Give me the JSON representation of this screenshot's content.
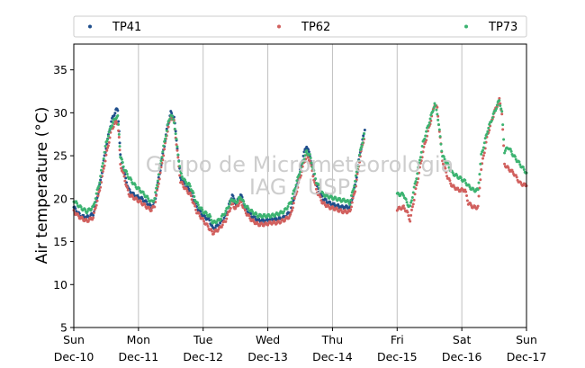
{
  "chart_data": {
    "type": "scatter",
    "ylabel": "Air temperature (°C)",
    "xlabel": "",
    "ylim": [
      5,
      38
    ],
    "xlim": [
      0,
      7
    ],
    "y_ticks": [
      5,
      10,
      15,
      20,
      25,
      30,
      35
    ],
    "x_ticks": [
      {
        "x": 0,
        "day": "Sun",
        "date": "Dec-10"
      },
      {
        "x": 1,
        "day": "Mon",
        "date": "Dec-11"
      },
      {
        "x": 2,
        "day": "Tue",
        "date": "Dec-12"
      },
      {
        "x": 3,
        "day": "Wed",
        "date": "Dec-13"
      },
      {
        "x": 4,
        "day": "Thu",
        "date": "Dec-14"
      },
      {
        "x": 5,
        "day": "Fri",
        "date": "Dec-15"
      },
      {
        "x": 6,
        "day": "Sat",
        "date": "Dec-16"
      },
      {
        "x": 7,
        "day": "Sun",
        "date": "Dec-17"
      }
    ],
    "grid": "vertical",
    "legend_position": "top",
    "watermark": [
      "Grupo de Micrometeorologia",
      "IAG / USP"
    ],
    "series": [
      {
        "name": "TP41",
        "color": "#1f4e8c",
        "points": [
          [
            0,
            19.0
          ],
          [
            0.1,
            18.0
          ],
          [
            0.2,
            17.8
          ],
          [
            0.3,
            18.2
          ],
          [
            0.4,
            21.5
          ],
          [
            0.5,
            26.0
          ],
          [
            0.58,
            29.0
          ],
          [
            0.65,
            30.3
          ],
          [
            0.68,
            30.3
          ],
          [
            0.7,
            28.0
          ],
          [
            0.72,
            25.0
          ],
          [
            0.78,
            23.0
          ],
          [
            0.85,
            21.0
          ],
          [
            0.95,
            20.3
          ],
          [
            1.05,
            20.0
          ],
          [
            1.15,
            19.4
          ],
          [
            1.2,
            19.0
          ],
          [
            1.25,
            19.5
          ],
          [
            1.35,
            24.0
          ],
          [
            1.45,
            28.5
          ],
          [
            1.5,
            30.0
          ],
          [
            1.55,
            29.5
          ],
          [
            1.6,
            26.0
          ],
          [
            1.65,
            22.5
          ],
          [
            1.72,
            21.5
          ],
          [
            1.8,
            21.0
          ],
          [
            1.9,
            19.0
          ],
          [
            2.0,
            18.0
          ],
          [
            2.1,
            17.5
          ],
          [
            2.15,
            16.5
          ],
          [
            2.25,
            17.0
          ],
          [
            2.35,
            18.0
          ],
          [
            2.45,
            20.5
          ],
          [
            2.5,
            19.2
          ],
          [
            2.58,
            20.5
          ],
          [
            2.65,
            19.0
          ],
          [
            2.75,
            18.0
          ],
          [
            2.85,
            17.5
          ],
          [
            2.95,
            17.4
          ],
          [
            3.05,
            17.6
          ],
          [
            3.15,
            17.6
          ],
          [
            3.25,
            17.8
          ],
          [
            3.35,
            18.5
          ],
          [
            3.45,
            21.5
          ],
          [
            3.55,
            25.0
          ],
          [
            3.6,
            26.2
          ],
          [
            3.65,
            25.0
          ],
          [
            3.75,
            21.5
          ],
          [
            3.85,
            20.0
          ],
          [
            3.95,
            19.5
          ],
          [
            4.05,
            19.2
          ],
          [
            4.15,
            19.0
          ],
          [
            4.2,
            19.0
          ],
          [
            4.27,
            19.0
          ],
          [
            4.35,
            21.5
          ],
          [
            4.43,
            25.5
          ],
          [
            4.5,
            28.0
          ]
        ]
      },
      {
        "name": "TP62",
        "color": "#d1605e",
        "points": [
          [
            0,
            18.5
          ],
          [
            0.1,
            17.8
          ],
          [
            0.2,
            17.4
          ],
          [
            0.3,
            17.8
          ],
          [
            0.4,
            21.0
          ],
          [
            0.5,
            25.0
          ],
          [
            0.58,
            28.0
          ],
          [
            0.65,
            29.0
          ],
          [
            0.68,
            28.8
          ],
          [
            0.7,
            27.0
          ],
          [
            0.72,
            24.0
          ],
          [
            0.78,
            22.5
          ],
          [
            0.85,
            20.5
          ],
          [
            0.95,
            20.0
          ],
          [
            1.05,
            19.5
          ],
          [
            1.15,
            18.9
          ],
          [
            1.2,
            18.7
          ],
          [
            1.25,
            19.2
          ],
          [
            1.35,
            23.5
          ],
          [
            1.45,
            28.0
          ],
          [
            1.5,
            29.5
          ],
          [
            1.55,
            29.0
          ],
          [
            1.6,
            25.5
          ],
          [
            1.65,
            22.0
          ],
          [
            1.72,
            21.2
          ],
          [
            1.8,
            20.5
          ],
          [
            1.9,
            18.5
          ],
          [
            2.0,
            17.5
          ],
          [
            2.1,
            16.5
          ],
          [
            2.15,
            16.0
          ],
          [
            2.25,
            16.5
          ],
          [
            2.35,
            17.5
          ],
          [
            2.45,
            19.5
          ],
          [
            2.5,
            18.8
          ],
          [
            2.58,
            19.8
          ],
          [
            2.65,
            18.5
          ],
          [
            2.75,
            17.5
          ],
          [
            2.85,
            17.0
          ],
          [
            2.95,
            17.0
          ],
          [
            3.05,
            17.2
          ],
          [
            3.15,
            17.2
          ],
          [
            3.25,
            17.5
          ],
          [
            3.35,
            18.0
          ],
          [
            3.45,
            21.0
          ],
          [
            3.55,
            24.0
          ],
          [
            3.6,
            25.0
          ],
          [
            3.65,
            24.5
          ],
          [
            3.75,
            21.0
          ],
          [
            3.85,
            19.5
          ],
          [
            3.95,
            19.0
          ],
          [
            4.05,
            18.8
          ],
          [
            4.15,
            18.5
          ],
          [
            4.2,
            18.5
          ],
          [
            4.27,
            18.5
          ],
          [
            4.35,
            21.0
          ],
          [
            4.43,
            25.0
          ],
          [
            4.5,
            27.5
          ],
          [
            5.0,
            18.8
          ],
          [
            5.1,
            19.0
          ],
          [
            5.15,
            18.5
          ],
          [
            5.2,
            17.5
          ],
          [
            5.3,
            21.5
          ],
          [
            5.4,
            25.5
          ],
          [
            5.5,
            28.5
          ],
          [
            5.58,
            31.0
          ],
          [
            5.62,
            30.5
          ],
          [
            5.7,
            24.5
          ],
          [
            5.78,
            22.5
          ],
          [
            5.85,
            21.5
          ],
          [
            5.95,
            21.0
          ],
          [
            6.05,
            21.0
          ],
          [
            6.1,
            19.5
          ],
          [
            6.18,
            19.0
          ],
          [
            6.25,
            19.0
          ],
          [
            6.3,
            23.5
          ],
          [
            6.4,
            27.5
          ],
          [
            6.5,
            30.0
          ],
          [
            6.58,
            31.5
          ],
          [
            6.62,
            30.0
          ],
          [
            6.66,
            24.0
          ],
          [
            6.72,
            23.5
          ],
          [
            6.8,
            23.0
          ],
          [
            6.9,
            21.8
          ],
          [
            7.0,
            21.5
          ]
        ]
      },
      {
        "name": "TP73",
        "color": "#3cb371",
        "points": [
          [
            0,
            19.8
          ],
          [
            0.1,
            19.0
          ],
          [
            0.2,
            18.5
          ],
          [
            0.3,
            19.0
          ],
          [
            0.4,
            22.0
          ],
          [
            0.5,
            26.5
          ],
          [
            0.58,
            28.5
          ],
          [
            0.65,
            29.5
          ],
          [
            0.68,
            29.5
          ],
          [
            0.7,
            27.5
          ],
          [
            0.72,
            25.0
          ],
          [
            0.78,
            23.5
          ],
          [
            0.85,
            22.5
          ],
          [
            0.95,
            21.5
          ],
          [
            1.05,
            20.8
          ],
          [
            1.15,
            20.0
          ],
          [
            1.2,
            19.6
          ],
          [
            1.25,
            20.0
          ],
          [
            1.35,
            24.5
          ],
          [
            1.45,
            28.5
          ],
          [
            1.5,
            29.8
          ],
          [
            1.55,
            29.0
          ],
          [
            1.6,
            26.0
          ],
          [
            1.65,
            23.0
          ],
          [
            1.72,
            22.0
          ],
          [
            1.8,
            21.5
          ],
          [
            1.9,
            19.5
          ],
          [
            2.0,
            18.5
          ],
          [
            2.1,
            18.0
          ],
          [
            2.15,
            17.2
          ],
          [
            2.25,
            17.5
          ],
          [
            2.35,
            18.5
          ],
          [
            2.45,
            20.0
          ],
          [
            2.5,
            19.5
          ],
          [
            2.58,
            20.2
          ],
          [
            2.65,
            19.2
          ],
          [
            2.75,
            18.5
          ],
          [
            2.85,
            18.0
          ],
          [
            2.95,
            18.0
          ],
          [
            3.05,
            18.0
          ],
          [
            3.15,
            18.2
          ],
          [
            3.25,
            18.5
          ],
          [
            3.35,
            19.5
          ],
          [
            3.45,
            22.0
          ],
          [
            3.55,
            24.5
          ],
          [
            3.6,
            25.5
          ],
          [
            3.65,
            25.0
          ],
          [
            3.75,
            22.0
          ],
          [
            3.85,
            20.5
          ],
          [
            3.95,
            20.2
          ],
          [
            4.05,
            20.0
          ],
          [
            4.15,
            19.8
          ],
          [
            4.2,
            19.8
          ],
          [
            4.27,
            19.5
          ],
          [
            4.35,
            22.0
          ],
          [
            4.43,
            25.5
          ],
          [
            4.5,
            27.8
          ],
          [
            5.0,
            20.5
          ],
          [
            5.1,
            20.5
          ],
          [
            5.15,
            19.5
          ],
          [
            5.2,
            19.0
          ],
          [
            5.3,
            22.5
          ],
          [
            5.4,
            26.5
          ],
          [
            5.5,
            29.0
          ],
          [
            5.58,
            31.0
          ],
          [
            5.62,
            30.0
          ],
          [
            5.7,
            25.0
          ],
          [
            5.78,
            24.0
          ],
          [
            5.85,
            23.0
          ],
          [
            5.95,
            22.5
          ],
          [
            6.05,
            22.0
          ],
          [
            6.1,
            21.5
          ],
          [
            6.18,
            21.0
          ],
          [
            6.25,
            21.0
          ],
          [
            6.3,
            25.0
          ],
          [
            6.4,
            28.0
          ],
          [
            6.5,
            30.0
          ],
          [
            6.58,
            31.5
          ],
          [
            6.62,
            30.0
          ],
          [
            6.66,
            25.5
          ],
          [
            6.72,
            26.0
          ],
          [
            6.8,
            25.0
          ],
          [
            6.9,
            24.0
          ],
          [
            7.0,
            23.0
          ]
        ]
      }
    ]
  }
}
